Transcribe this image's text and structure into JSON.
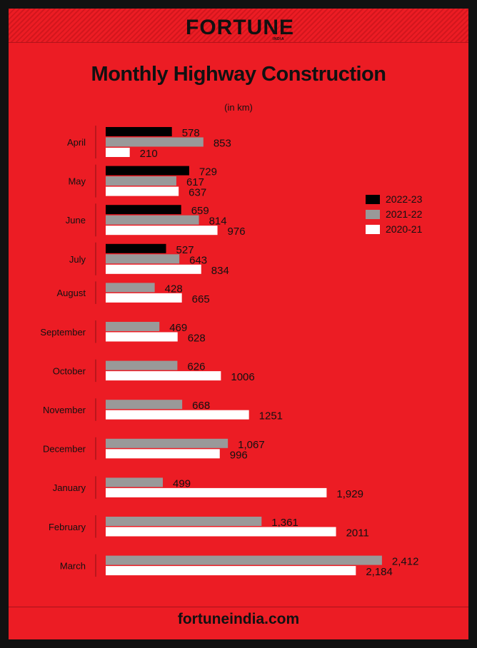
{
  "brand": {
    "name": "FORTUNE",
    "sub": "INDIA"
  },
  "footer": "fortuneindia.com",
  "colors": {
    "background": "#ec1c24",
    "series_2022_23": "#000000",
    "series_2021_22": "#999999",
    "series_2020_21": "#ffffff"
  },
  "chart_data": {
    "type": "bar",
    "orientation": "horizontal",
    "title": "Monthly Highway Construction",
    "subtitle": "(in km)",
    "categories": [
      "April",
      "May",
      "June",
      "July",
      "August",
      "September",
      "October",
      "November",
      "December",
      "January",
      "February",
      "March"
    ],
    "series": [
      {
        "name": "2022-23",
        "color": "#000000",
        "values": [
          578,
          729,
          659,
          527,
          null,
          null,
          null,
          null,
          null,
          null,
          null,
          null
        ],
        "labels": [
          "578",
          "729",
          "659",
          "527",
          "",
          "",
          "",
          "",
          "",
          "",
          "",
          ""
        ]
      },
      {
        "name": "2021-22",
        "color": "#999999",
        "values": [
          853,
          617,
          814,
          643,
          428,
          469,
          626,
          668,
          1067,
          499,
          1361,
          2412
        ],
        "labels": [
          "853",
          "617",
          "814",
          "643",
          "428",
          "469",
          "626",
          "668",
          "1,067",
          "499",
          "1,361",
          "2,412"
        ]
      },
      {
        "name": "2020-21",
        "color": "#ffffff",
        "values": [
          210,
          637,
          976,
          834,
          665,
          628,
          1006,
          1251,
          996,
          1929,
          2011,
          2184
        ],
        "labels": [
          "210",
          "637",
          "976",
          "834",
          "665",
          "628",
          "1006",
          "1251",
          "996",
          "1,929",
          "2011",
          "2,184"
        ]
      }
    ],
    "legend_position": "right",
    "grid": false
  }
}
